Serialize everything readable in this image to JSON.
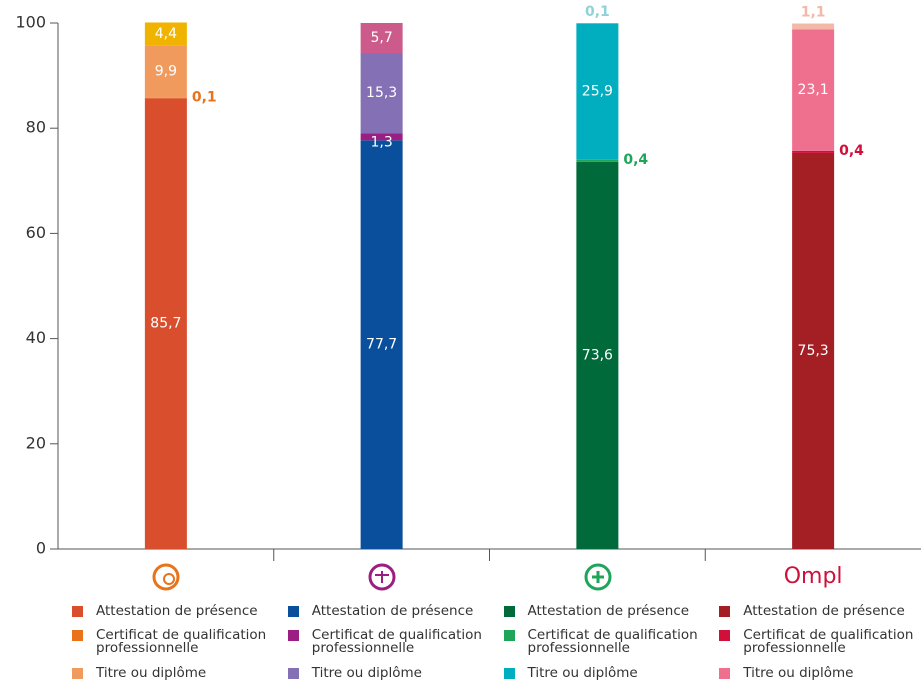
{
  "chart_data": {
    "type": "bar",
    "stacked": true,
    "categories": [
      null,
      null,
      null,
      "Ompl"
    ],
    "ylim": [
      0,
      100
    ],
    "yticks": [
      0,
      20,
      40,
      60,
      80,
      100
    ],
    "grid": false,
    "series": [
      {
        "name": "Attestation de présence",
        "colors": [
          "#d94f2e",
          "#0a4f9b",
          "#006a3a",
          "#a31f24"
        ],
        "values": [
          85.7,
          77.7,
          73.6,
          75.3
        ],
        "value_labels": [
          "85,7",
          "77,7",
          "73,6",
          "75,3"
        ]
      },
      {
        "name": "Certificat de qualification professionnelle",
        "colors": [
          "#e8731a",
          "#9c1e82",
          "#1ea55a",
          "#d0103a"
        ],
        "values": [
          0.1,
          1.3,
          0.4,
          0.4
        ],
        "value_labels": [
          "0,1",
          "1,3",
          "0,4",
          "0,4"
        ]
      },
      {
        "name": "Titre ou diplôme",
        "colors": [
          "#f19a5e",
          "#8470b5",
          "#00aec0",
          "#ef6f8f"
        ],
        "values": [
          9.9,
          15.3,
          25.9,
          23.1
        ],
        "value_labels": [
          "9,9",
          "15,3",
          "25,9",
          "23,1"
        ]
      },
      {
        "colors": [
          "#f0b400",
          "#cc5a8a",
          "#8fd3d9",
          "#f4b8a8"
        ],
        "values": [
          4.4,
          5.7,
          0.1,
          1.1
        ],
        "value_labels": [
          "4,4",
          "5,7",
          "0,1",
          "1,1"
        ]
      }
    ]
  }
}
